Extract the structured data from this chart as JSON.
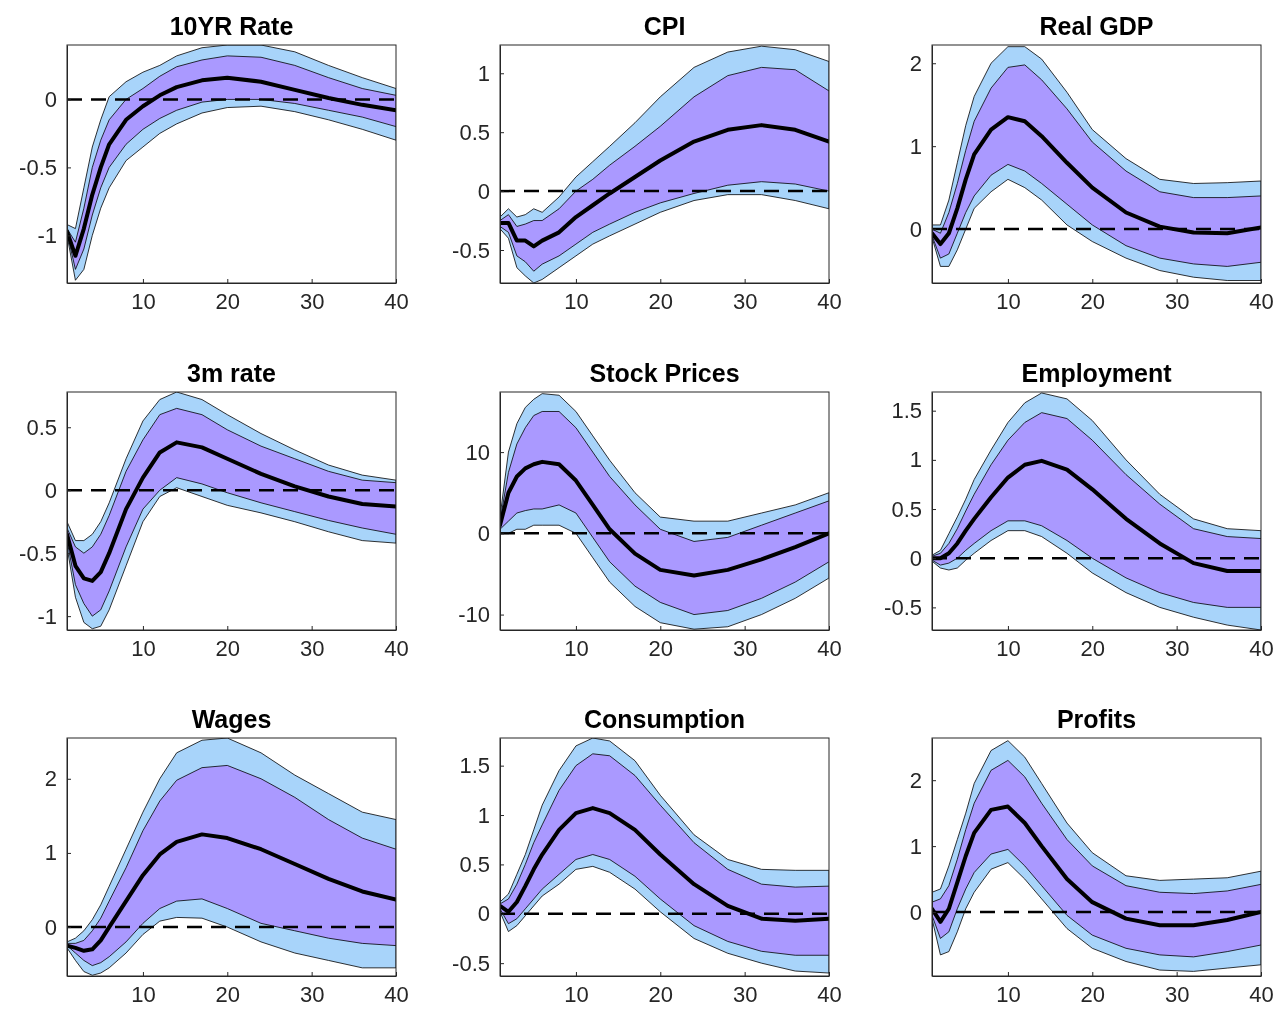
{
  "chart_data": [
    {
      "type": "line",
      "title": "10YR Rate",
      "x": [
        1,
        2,
        3,
        4,
        5,
        6,
        8,
        10,
        12,
        14,
        17,
        20,
        24,
        28,
        32,
        36,
        40
      ],
      "xlim": [
        1,
        40
      ],
      "xticks": [
        10,
        20,
        30,
        40
      ],
      "ylim": [
        -1.35,
        0.4
      ],
      "yticks": [
        -1,
        -0.5,
        0
      ],
      "ref_lines": [
        {
          "axis": "y",
          "value": 0,
          "color": "#000000",
          "line_style": "dashed"
        }
      ],
      "series": [
        {
          "color": "#a8d4fa",
          "values": [
            null,
            null,
            null,
            null,
            null,
            null,
            null,
            null,
            null,
            null,
            null,
            null,
            null,
            null,
            null,
            null,
            null
          ],
          "lower": [
            -1,
            -1.33,
            -1.25,
            -1.0,
            -0.8,
            -0.65,
            -0.45,
            -0.35,
            -0.25,
            -0.18,
            -0.1,
            -0.06,
            -0.05,
            -0.09,
            -0.15,
            -0.22,
            -0.3
          ],
          "upper": [
            -0.92,
            -0.95,
            -0.65,
            -0.35,
            -0.15,
            0.02,
            0.13,
            0.2,
            0.25,
            0.32,
            0.38,
            0.4,
            0.4,
            0.35,
            0.25,
            0.16,
            0.08
          ]
        },
        {
          "color": "#aa99ff",
          "values": [
            null,
            null,
            null,
            null,
            null,
            null,
            null,
            null,
            null,
            null,
            null,
            null,
            null,
            null,
            null,
            null,
            null
          ],
          "lower": [
            -0.98,
            -1.25,
            -1.1,
            -0.85,
            -0.65,
            -0.5,
            -0.33,
            -0.22,
            -0.14,
            -0.08,
            -0.02,
            0,
            0,
            -0.03,
            -0.08,
            -0.13,
            -0.2
          ],
          "upper": [
            -0.95,
            -1.05,
            -0.8,
            -0.5,
            -0.3,
            -0.15,
            0,
            0.08,
            0.17,
            0.24,
            0.29,
            0.32,
            0.31,
            0.25,
            0.16,
            0.08,
            0.03
          ]
        },
        {
          "color": "#000000",
          "values": [
            -0.97,
            -1.15,
            -0.95,
            -0.7,
            -0.5,
            -0.33,
            -0.15,
            -0.05,
            0.03,
            0.09,
            0.14,
            0.16,
            0.13,
            0.07,
            0.01,
            -0.04,
            -0.08
          ]
        }
      ]
    },
    {
      "type": "line",
      "title": "CPI",
      "x": [
        1,
        2,
        3,
        4,
        5,
        6,
        8,
        10,
        12,
        14,
        17,
        20,
        24,
        28,
        32,
        36,
        40
      ],
      "xlim": [
        1,
        40
      ],
      "xticks": [
        10,
        20,
        30,
        40
      ],
      "ylim": [
        -0.78,
        1.24
      ],
      "yticks": [
        -0.5,
        0,
        0.5,
        1
      ],
      "ref_lines": [
        {
          "axis": "y",
          "value": 0,
          "color": "#000000",
          "line_style": "dashed"
        }
      ],
      "series": [
        {
          "color": "#a8d4fa",
          "values": [
            null,
            null,
            null,
            null,
            null,
            null,
            null,
            null,
            null,
            null,
            null,
            null,
            null,
            null,
            null,
            null,
            null
          ],
          "lower": [
            -0.32,
            -0.4,
            -0.65,
            -0.72,
            -0.78,
            -0.75,
            -0.65,
            -0.55,
            -0.45,
            -0.38,
            -0.28,
            -0.18,
            -0.08,
            -0.03,
            -0.03,
            -0.08,
            -0.15
          ],
          "upper": [
            -0.22,
            -0.15,
            -0.22,
            -0.2,
            -0.15,
            -0.18,
            -0.05,
            0.12,
            0.25,
            0.38,
            0.58,
            0.8,
            1.05,
            1.18,
            1.23,
            1.2,
            1.1
          ]
        },
        {
          "color": "#aa99ff",
          "values": [
            null,
            null,
            null,
            null,
            null,
            null,
            null,
            null,
            null,
            null,
            null,
            null,
            null,
            null,
            null,
            null,
            null
          ],
          "lower": [
            -0.3,
            -0.35,
            -0.55,
            -0.6,
            -0.68,
            -0.62,
            -0.55,
            -0.45,
            -0.35,
            -0.28,
            -0.18,
            -0.1,
            -0.02,
            0.05,
            0.08,
            0.06,
            0
          ],
          "upper": [
            -0.25,
            -0.2,
            -0.3,
            -0.28,
            -0.25,
            -0.25,
            -0.15,
            0,
            0.1,
            0.22,
            0.38,
            0.55,
            0.8,
            0.98,
            1.05,
            1.03,
            0.85
          ]
        },
        {
          "color": "#000000",
          "values": [
            -0.27,
            -0.27,
            -0.42,
            -0.42,
            -0.47,
            -0.42,
            -0.35,
            -0.22,
            -0.12,
            -0.02,
            0.12,
            0.26,
            0.42,
            0.52,
            0.56,
            0.52,
            0.42
          ]
        }
      ]
    },
    {
      "type": "line",
      "title": "Real GDP",
      "x": [
        1,
        2,
        3,
        4,
        5,
        6,
        8,
        10,
        12,
        14,
        17,
        20,
        24,
        28,
        32,
        36,
        40
      ],
      "xlim": [
        1,
        40
      ],
      "xticks": [
        10,
        20,
        30,
        40
      ],
      "ylim": [
        -0.65,
        2.22
      ],
      "yticks": [
        0,
        1,
        2
      ],
      "ref_lines": [
        {
          "axis": "y",
          "value": 0,
          "color": "#000000",
          "line_style": "dashed"
        }
      ],
      "series": [
        {
          "color": "#a8d4fa",
          "values": [
            null,
            null,
            null,
            null,
            null,
            null,
            null,
            null,
            null,
            null,
            null,
            null,
            null,
            null,
            null,
            null,
            null
          ],
          "lower": [
            -0.1,
            -0.45,
            -0.45,
            -0.25,
            0,
            0.25,
            0.45,
            0.6,
            0.5,
            0.35,
            0.05,
            -0.15,
            -0.35,
            -0.5,
            -0.58,
            -0.62,
            -0.62
          ],
          "upper": [
            0.05,
            0.05,
            0.35,
            0.8,
            1.25,
            1.6,
            2.0,
            2.2,
            2.2,
            2.05,
            1.65,
            1.2,
            0.85,
            0.6,
            0.55,
            0.56,
            0.58
          ]
        },
        {
          "color": "#aa99ff",
          "values": [
            null,
            null,
            null,
            null,
            null,
            null,
            null,
            null,
            null,
            null,
            null,
            null,
            null,
            null,
            null,
            null,
            null
          ],
          "lower": [
            -0.08,
            -0.35,
            -0.3,
            -0.05,
            0.2,
            0.4,
            0.65,
            0.78,
            0.7,
            0.55,
            0.3,
            0.05,
            -0.2,
            -0.35,
            -0.42,
            -0.45,
            -0.4
          ],
          "upper": [
            0,
            -0.05,
            0.2,
            0.55,
            0.95,
            1.3,
            1.7,
            1.95,
            1.98,
            1.8,
            1.45,
            1.05,
            0.7,
            0.45,
            0.38,
            0.38,
            0.4
          ]
        },
        {
          "color": "#000000",
          "values": [
            -0.05,
            -0.18,
            -0.05,
            0.25,
            0.6,
            0.9,
            1.2,
            1.35,
            1.3,
            1.12,
            0.8,
            0.5,
            0.2,
            0.03,
            -0.04,
            -0.05,
            0.02
          ]
        }
      ]
    },
    {
      "type": "line",
      "title": "3m rate",
      "x": [
        1,
        2,
        3,
        4,
        5,
        6,
        8,
        10,
        12,
        14,
        17,
        20,
        24,
        28,
        32,
        36,
        40
      ],
      "xlim": [
        1,
        40
      ],
      "xticks": [
        10,
        20,
        30,
        40
      ],
      "ylim": [
        -1.11,
        0.78
      ],
      "yticks": [
        -1,
        -0.5,
        0,
        0.5
      ],
      "ref_lines": [
        {
          "axis": "y",
          "value": 0,
          "color": "#000000",
          "line_style": "dashed"
        }
      ],
      "series": [
        {
          "color": "#a8d4fa",
          "values": [
            null,
            null,
            null,
            null,
            null,
            null,
            null,
            null,
            null,
            null,
            null,
            null,
            null,
            null,
            null,
            null,
            null
          ],
          "lower": [
            -0.45,
            -0.85,
            -1.05,
            -1.1,
            -1.08,
            -0.95,
            -0.6,
            -0.25,
            -0.05,
            0.02,
            -0.05,
            -0.12,
            -0.18,
            -0.25,
            -0.33,
            -0.4,
            -0.42
          ],
          "upper": [
            -0.25,
            -0.4,
            -0.4,
            -0.35,
            -0.25,
            -0.1,
            0.25,
            0.55,
            0.72,
            0.78,
            0.72,
            0.6,
            0.45,
            0.32,
            0.2,
            0.12,
            0.08
          ]
        },
        {
          "color": "#aa99ff",
          "values": [
            null,
            null,
            null,
            null,
            null,
            null,
            null,
            null,
            null,
            null,
            null,
            null,
            null,
            null,
            null,
            null,
            null
          ],
          "lower": [
            -0.4,
            -0.75,
            -0.9,
            -1.0,
            -0.95,
            -0.8,
            -0.45,
            -0.15,
            0,
            0.1,
            0.05,
            -0.02,
            -0.1,
            -0.17,
            -0.24,
            -0.3,
            -0.35
          ],
          "upper": [
            -0.3,
            -0.45,
            -0.5,
            -0.45,
            -0.35,
            -0.2,
            0.15,
            0.4,
            0.6,
            0.65,
            0.6,
            0.48,
            0.35,
            0.25,
            0.15,
            0.08,
            0.06
          ]
        },
        {
          "color": "#000000",
          "values": [
            -0.35,
            -0.6,
            -0.7,
            -0.72,
            -0.65,
            -0.5,
            -0.15,
            0.1,
            0.3,
            0.38,
            0.34,
            0.25,
            0.13,
            0.03,
            -0.05,
            -0.11,
            -0.13
          ]
        }
      ]
    },
    {
      "type": "line",
      "title": "Stock Prices",
      "x": [
        1,
        2,
        3,
        4,
        5,
        6,
        8,
        10,
        12,
        14,
        17,
        20,
        24,
        28,
        32,
        36,
        40
      ],
      "xlim": [
        1,
        40
      ],
      "xticks": [
        10,
        20,
        30,
        40
      ],
      "ylim": [
        -11.9,
        17.4
      ],
      "yticks": [
        -10,
        0,
        10
      ],
      "ref_lines": [
        {
          "axis": "y",
          "value": 0,
          "color": "#000000",
          "line_style": "dashed"
        }
      ],
      "series": [
        {
          "color": "#a8d4fa",
          "values": [
            null,
            null,
            null,
            null,
            null,
            null,
            null,
            null,
            null,
            null,
            null,
            null,
            null,
            null,
            null,
            null,
            null
          ],
          "lower": [
            0,
            0,
            0.5,
            0.5,
            1,
            1,
            1,
            0,
            -3,
            -6,
            -9,
            -11,
            -11.8,
            -11.5,
            -10,
            -8,
            -5.5
          ],
          "upper": [
            2,
            10,
            13.5,
            15.5,
            16.5,
            17.2,
            17,
            15,
            12,
            9,
            5,
            2,
            1.5,
            1.5,
            2.5,
            3.5,
            5
          ]
        },
        {
          "color": "#aa99ff",
          "values": [
            null,
            null,
            null,
            null,
            null,
            null,
            null,
            null,
            null,
            null,
            null,
            null,
            null,
            null,
            null,
            null,
            null
          ],
          "lower": [
            0.5,
            1.5,
            2.5,
            2.8,
            3,
            3,
            3.5,
            2.5,
            -0.5,
            -3.5,
            -6.5,
            -8.5,
            -10,
            -9.5,
            -8,
            -6,
            -3.5
          ],
          "upper": [
            1.5,
            7.5,
            11,
            13,
            14.5,
            15,
            15,
            13,
            10,
            7,
            3.5,
            0.5,
            -1,
            -0.5,
            1,
            2.5,
            4
          ]
        },
        {
          "color": "#000000",
          "values": [
            1,
            5,
            7,
            8,
            8.5,
            8.8,
            8.5,
            6.5,
            3.5,
            0.5,
            -2.5,
            -4.5,
            -5.2,
            -4.5,
            -3.2,
            -1.7,
            0
          ]
        }
      ]
    },
    {
      "type": "line",
      "title": "Employment",
      "x": [
        1,
        2,
        3,
        4,
        5,
        6,
        8,
        10,
        12,
        14,
        17,
        20,
        24,
        28,
        32,
        36,
        40
      ],
      "xlim": [
        1,
        40
      ],
      "xticks": [
        10,
        20,
        30,
        40
      ],
      "ylim": [
        -0.73,
        1.69
      ],
      "yticks": [
        -0.5,
        0,
        0.5,
        1,
        1.5
      ],
      "ref_lines": [
        {
          "axis": "y",
          "value": 0,
          "color": "#000000",
          "line_style": "dashed"
        }
      ],
      "series": [
        {
          "color": "#a8d4fa",
          "values": [
            null,
            null,
            null,
            null,
            null,
            null,
            null,
            null,
            null,
            null,
            null,
            null,
            null,
            null,
            null,
            null,
            null
          ],
          "lower": [
            -0.03,
            -0.1,
            -0.12,
            -0.1,
            -0.02,
            0.05,
            0.18,
            0.28,
            0.28,
            0.22,
            0.05,
            -0.15,
            -0.35,
            -0.5,
            -0.6,
            -0.68,
            -0.73
          ],
          "upper": [
            0.03,
            0.08,
            0.25,
            0.42,
            0.6,
            0.8,
            1.1,
            1.38,
            1.58,
            1.68,
            1.62,
            1.4,
            1.0,
            0.65,
            0.4,
            0.3,
            0.28
          ]
        },
        {
          "color": "#aa99ff",
          "values": [
            null,
            null,
            null,
            null,
            null,
            null,
            null,
            null,
            null,
            null,
            null,
            null,
            null,
            null,
            null,
            null,
            null
          ],
          "lower": [
            -0.02,
            -0.07,
            -0.05,
            0,
            0.08,
            0.15,
            0.28,
            0.38,
            0.38,
            0.33,
            0.18,
            0,
            -0.2,
            -0.35,
            -0.45,
            -0.5,
            -0.5
          ],
          "upper": [
            0.02,
            0.05,
            0.15,
            0.3,
            0.48,
            0.65,
            0.95,
            1.2,
            1.38,
            1.48,
            1.42,
            1.2,
            0.85,
            0.55,
            0.3,
            0.22,
            0.2
          ]
        },
        {
          "color": "#000000",
          "values": [
            0,
            0,
            0.05,
            0.15,
            0.28,
            0.4,
            0.62,
            0.82,
            0.95,
            0.99,
            0.9,
            0.7,
            0.4,
            0.15,
            -0.05,
            -0.13,
            -0.13
          ]
        }
      ]
    },
    {
      "type": "line",
      "title": "Wages",
      "x": [
        1,
        2,
        3,
        4,
        5,
        6,
        8,
        10,
        12,
        14,
        17,
        20,
        24,
        28,
        32,
        36,
        40
      ],
      "xlim": [
        1,
        40
      ],
      "xticks": [
        10,
        20,
        30,
        40
      ],
      "ylim": [
        -0.66,
        2.55
      ],
      "yticks": [
        0,
        1,
        2
      ],
      "ref_lines": [
        {
          "axis": "y",
          "value": 0,
          "color": "#000000",
          "line_style": "dashed"
        }
      ],
      "series": [
        {
          "color": "#a8d4fa",
          "values": [
            null,
            null,
            null,
            null,
            null,
            null,
            null,
            null,
            null,
            null,
            null,
            null,
            null,
            null,
            null,
            null,
            null
          ],
          "lower": [
            -0.28,
            -0.45,
            -0.6,
            -0.65,
            -0.62,
            -0.55,
            -0.35,
            -0.1,
            0.08,
            0.13,
            0.12,
            0,
            -0.2,
            -0.35,
            -0.45,
            -0.55,
            -0.55
          ],
          "upper": [
            -0.2,
            -0.15,
            -0.05,
            0.1,
            0.3,
            0.55,
            1.05,
            1.55,
            2.0,
            2.35,
            2.52,
            2.55,
            2.35,
            2.05,
            1.8,
            1.55,
            1.45
          ]
        },
        {
          "color": "#aa99ff",
          "values": [
            null,
            null,
            null,
            null,
            null,
            null,
            null,
            null,
            null,
            null,
            null,
            null,
            null,
            null,
            null,
            null,
            null
          ],
          "lower": [
            -0.25,
            -0.35,
            -0.45,
            -0.52,
            -0.48,
            -0.4,
            -0.2,
            0.05,
            0.25,
            0.35,
            0.38,
            0.25,
            0.05,
            -0.05,
            -0.15,
            -0.22,
            -0.25
          ],
          "upper": [
            -0.22,
            -0.22,
            -0.18,
            -0.05,
            0.12,
            0.35,
            0.8,
            1.3,
            1.7,
            1.98,
            2.15,
            2.18,
            2.0,
            1.75,
            1.45,
            1.2,
            1.05
          ]
        },
        {
          "color": "#000000",
          "values": [
            -0.25,
            -0.28,
            -0.32,
            -0.3,
            -0.18,
            0,
            0.35,
            0.7,
            0.98,
            1.15,
            1.25,
            1.2,
            1.05,
            0.85,
            0.65,
            0.48,
            0.37
          ]
        }
      ]
    },
    {
      "type": "line",
      "title": "Consumption",
      "x": [
        1,
        2,
        3,
        4,
        5,
        6,
        8,
        10,
        12,
        14,
        17,
        20,
        24,
        28,
        32,
        36,
        40
      ],
      "xlim": [
        1,
        40
      ],
      "xticks": [
        10,
        20,
        30,
        40
      ],
      "ylim": [
        -0.63,
        1.78
      ],
      "yticks": [
        -0.5,
        0,
        0.5,
        1,
        1.5
      ],
      "ref_lines": [
        {
          "axis": "y",
          "value": 0,
          "color": "#000000",
          "line_style": "dashed"
        }
      ],
      "series": [
        {
          "color": "#a8d4fa",
          "values": [
            null,
            null,
            null,
            null,
            null,
            null,
            null,
            null,
            null,
            null,
            null,
            null,
            null,
            null,
            null,
            null,
            null
          ],
          "lower": [
            0.02,
            -0.18,
            -0.12,
            -0.02,
            0.08,
            0.18,
            0.3,
            0.45,
            0.48,
            0.42,
            0.25,
            0.02,
            -0.25,
            -0.4,
            -0.5,
            -0.58,
            -0.6
          ],
          "upper": [
            0.12,
            0.2,
            0.4,
            0.6,
            0.85,
            1.1,
            1.45,
            1.7,
            1.78,
            1.75,
            1.55,
            1.2,
            0.8,
            0.55,
            0.45,
            0.44,
            0.44
          ]
        },
        {
          "color": "#aa99ff",
          "values": [
            null,
            null,
            null,
            null,
            null,
            null,
            null,
            null,
            null,
            null,
            null,
            null,
            null,
            null,
            null,
            null,
            null
          ],
          "lower": [
            0.05,
            -0.1,
            -0.05,
            0.05,
            0.15,
            0.25,
            0.4,
            0.55,
            0.6,
            0.55,
            0.38,
            0.15,
            -0.12,
            -0.28,
            -0.38,
            -0.42,
            -0.42
          ],
          "upper": [
            0.1,
            0.15,
            0.3,
            0.5,
            0.72,
            0.9,
            1.25,
            1.5,
            1.62,
            1.6,
            1.4,
            1.1,
            0.72,
            0.45,
            0.3,
            0.27,
            0.28
          ]
        },
        {
          "color": "#000000",
          "values": [
            0.08,
            0.02,
            0.12,
            0.28,
            0.45,
            0.6,
            0.85,
            1.02,
            1.07,
            1.02,
            0.85,
            0.6,
            0.3,
            0.08,
            -0.05,
            -0.07,
            -0.05
          ]
        }
      ]
    },
    {
      "type": "line",
      "title": "Profits",
      "x": [
        1,
        2,
        3,
        4,
        5,
        6,
        8,
        10,
        12,
        14,
        17,
        20,
        24,
        28,
        32,
        36,
        40
      ],
      "xlim": [
        1,
        40
      ],
      "xticks": [
        10,
        20,
        30,
        40
      ],
      "ylim": [
        -0.97,
        2.64
      ],
      "yticks": [
        0,
        1,
        2
      ],
      "ref_lines": [
        {
          "axis": "y",
          "value": 0,
          "color": "#000000",
          "line_style": "dashed"
        }
      ],
      "series": [
        {
          "color": "#a8d4fa",
          "values": [
            null,
            null,
            null,
            null,
            null,
            null,
            null,
            null,
            null,
            null,
            null,
            null,
            null,
            null,
            null,
            null,
            null
          ],
          "lower": [
            -0.1,
            -0.65,
            -0.6,
            -0.3,
            0.05,
            0.3,
            0.65,
            0.75,
            0.5,
            0.2,
            -0.25,
            -0.55,
            -0.75,
            -0.88,
            -0.9,
            -0.85,
            -0.8
          ],
          "upper": [
            0.3,
            0.35,
            0.7,
            1.1,
            1.5,
            1.95,
            2.45,
            2.6,
            2.35,
            1.95,
            1.35,
            0.9,
            0.55,
            0.48,
            0.5,
            0.52,
            0.62
          ]
        },
        {
          "color": "#aa99ff",
          "values": [
            null,
            null,
            null,
            null,
            null,
            null,
            null,
            null,
            null,
            null,
            null,
            null,
            null,
            null,
            null,
            null,
            null
          ],
          "lower": [
            -0.05,
            -0.4,
            -0.3,
            0.05,
            0.35,
            0.6,
            0.88,
            0.95,
            0.7,
            0.4,
            -0.05,
            -0.35,
            -0.55,
            -0.65,
            -0.68,
            -0.6,
            -0.5
          ],
          "upper": [
            0.15,
            0.2,
            0.4,
            0.8,
            1.25,
            1.65,
            2.15,
            2.3,
            2.05,
            1.65,
            1.1,
            0.7,
            0.4,
            0.3,
            0.28,
            0.32,
            0.42
          ]
        },
        {
          "color": "#000000",
          "values": [
            0.05,
            -0.15,
            0.05,
            0.45,
            0.85,
            1.2,
            1.55,
            1.6,
            1.35,
            1.0,
            0.5,
            0.15,
            -0.1,
            -0.2,
            -0.2,
            -0.12,
            0
          ]
        }
      ]
    }
  ]
}
